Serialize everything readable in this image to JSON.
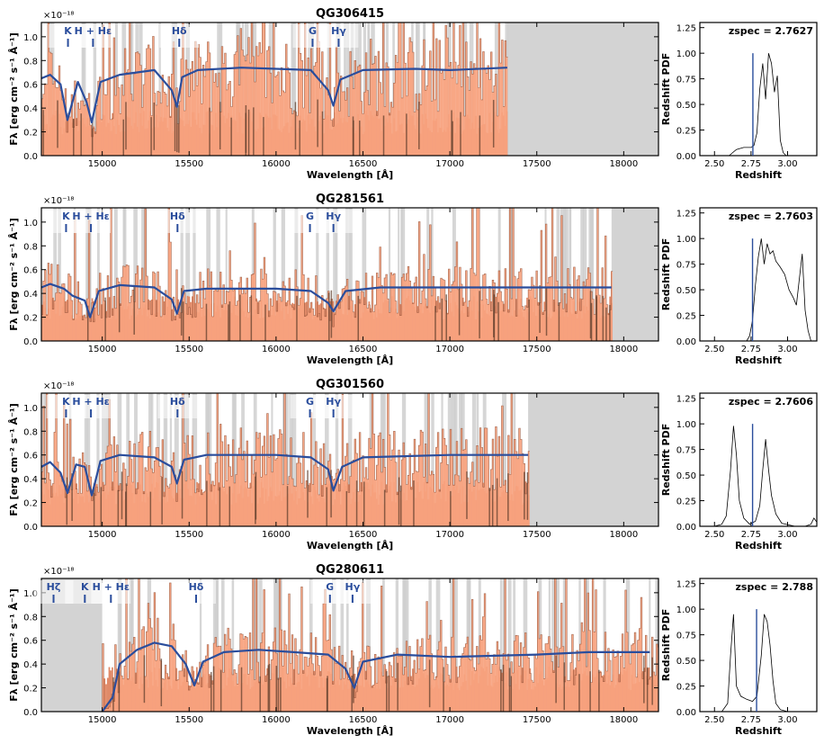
{
  "chart_data": [
    {
      "type": "line",
      "title": "QG306415",
      "xlabel": "Wavelength [Å]",
      "ylabel": "Fλ [erg cm⁻² s⁻¹ Å⁻¹]",
      "scale_label": "×10⁻¹⁸",
      "xlim": [
        14650,
        18200
      ],
      "ylim": [
        0,
        1.12
      ],
      "xticks": [
        "15000",
        "15500",
        "16000",
        "16500",
        "17000",
        "17500",
        "18000"
      ],
      "yticks": [
        "0.0",
        "0.2",
        "0.4",
        "0.6",
        "0.8",
        "1.0"
      ],
      "data_end": 17330,
      "masked_from": 17330,
      "continuum": 0.72,
      "model_series": {
        "x": [
          14650,
          14700,
          14760,
          14800,
          14860,
          14910,
          14940,
          14990,
          15100,
          15300,
          15400,
          15430,
          15460,
          15550,
          15800,
          16000,
          16200,
          16300,
          16330,
          16370,
          16500,
          16800,
          17000,
          17330
        ],
        "y": [
          0.65,
          0.68,
          0.6,
          0.3,
          0.62,
          0.45,
          0.28,
          0.62,
          0.68,
          0.72,
          0.55,
          0.41,
          0.66,
          0.72,
          0.74,
          0.73,
          0.72,
          0.55,
          0.42,
          0.64,
          0.72,
          0.73,
          0.72,
          0.74
        ]
      },
      "lines": [
        {
          "label": "K",
          "x": 14803
        },
        {
          "label": "H + Hε",
          "x": 14947
        },
        {
          "label": "Hδ",
          "x": 15443
        },
        {
          "label": "G",
          "x": 16210
        },
        {
          "label": "Hγ",
          "x": 16360
        }
      ],
      "pdf": {
        "xlabel": "Redshift",
        "ylabel": "Redshift PDF",
        "zspec_label": "zspec = 2.7627",
        "zspec": 2.7627,
        "xlim": [
          2.4,
          3.2
        ],
        "ylim": [
          0,
          1.3
        ],
        "xticks": [
          "2.50",
          "2.75",
          "3.00"
        ],
        "yticks": [
          "0.00",
          "0.25",
          "0.50",
          "0.75",
          "1.00",
          "1.25"
        ],
        "x": [
          2.6,
          2.65,
          2.7,
          2.75,
          2.77,
          2.79,
          2.81,
          2.83,
          2.85,
          2.87,
          2.89,
          2.91,
          2.93,
          2.95,
          2.97,
          2.99
        ],
        "y": [
          0.0,
          0.06,
          0.08,
          0.08,
          0.1,
          0.22,
          0.65,
          0.9,
          0.55,
          1.0,
          0.9,
          0.62,
          0.78,
          0.15,
          0.03,
          0.0
        ]
      }
    },
    {
      "type": "line",
      "title": "QG281561",
      "xlabel": "Wavelength [Å]",
      "ylabel": "Fλ [erg cm⁻² s⁻¹ Å⁻¹]",
      "scale_label": "×10⁻¹⁸",
      "xlim": [
        14650,
        18200
      ],
      "ylim": [
        0,
        1.12
      ],
      "xticks": [
        "15000",
        "15500",
        "16000",
        "16500",
        "17000",
        "17500",
        "18000"
      ],
      "yticks": [
        "0.0",
        "0.2",
        "0.4",
        "0.6",
        "0.8",
        "1.0"
      ],
      "data_end": 17930,
      "masked_from": 17930,
      "continuum": 0.45,
      "model_series": {
        "x": [
          14650,
          14700,
          14780,
          14830,
          14900,
          14930,
          14980,
          15100,
          15300,
          15400,
          15430,
          15470,
          15600,
          16000,
          16200,
          16300,
          16330,
          16400,
          16600,
          17000,
          17500,
          17930
        ],
        "y": [
          0.45,
          0.48,
          0.44,
          0.38,
          0.34,
          0.2,
          0.42,
          0.47,
          0.45,
          0.35,
          0.23,
          0.42,
          0.44,
          0.44,
          0.42,
          0.32,
          0.25,
          0.42,
          0.45,
          0.45,
          0.45,
          0.45
        ]
      },
      "lines": [
        {
          "label": "K",
          "x": 14792
        },
        {
          "label": "H + Hε",
          "x": 14935
        },
        {
          "label": "Hδ",
          "x": 15433
        },
        {
          "label": "G",
          "x": 16195
        },
        {
          "label": "Hγ",
          "x": 16330
        }
      ],
      "pdf": {
        "xlabel": "Redshift",
        "ylabel": "Redshift PDF",
        "zspec_label": "zspec = 2.7603",
        "zspec": 2.7603,
        "xlim": [
          2.4,
          3.2
        ],
        "ylim": [
          0,
          1.3
        ],
        "xticks": [
          "2.50",
          "2.75",
          "3.00"
        ],
        "yticks": [
          "0.00",
          "0.25",
          "0.50",
          "0.75",
          "1.00",
          "1.25"
        ],
        "x": [
          2.72,
          2.74,
          2.76,
          2.78,
          2.8,
          2.82,
          2.84,
          2.86,
          2.88,
          2.9,
          2.92,
          2.95,
          2.98,
          3.01,
          3.04,
          3.06,
          3.08,
          3.1,
          3.12,
          3.14,
          3.16
        ],
        "y": [
          0.0,
          0.05,
          0.2,
          0.55,
          0.82,
          1.0,
          0.75,
          0.95,
          0.85,
          0.88,
          0.78,
          0.72,
          0.65,
          0.5,
          0.42,
          0.35,
          0.6,
          0.85,
          0.3,
          0.1,
          0.0
        ]
      }
    },
    {
      "type": "line",
      "title": "QG301560",
      "xlabel": "Wavelength [Å]",
      "ylabel": "Fλ [erg cm⁻² s⁻¹ Å⁻¹]",
      "scale_label": "×10⁻¹⁸",
      "xlim": [
        14650,
        18200
      ],
      "ylim": [
        0,
        1.12
      ],
      "xticks": [
        "15000",
        "15500",
        "16000",
        "16500",
        "17000",
        "17500",
        "18000"
      ],
      "yticks": [
        "0.0",
        "0.2",
        "0.4",
        "0.6",
        "0.8",
        "1.0"
      ],
      "data_end": 17450,
      "masked_from": 17450,
      "continuum": 0.6,
      "model_series": {
        "x": [
          14650,
          14700,
          14760,
          14800,
          14850,
          14900,
          14940,
          14990,
          15100,
          15300,
          15400,
          15430,
          15470,
          15600,
          16000,
          16200,
          16300,
          16330,
          16380,
          16500,
          17000,
          17450
        ],
        "y": [
          0.5,
          0.54,
          0.45,
          0.28,
          0.52,
          0.5,
          0.26,
          0.55,
          0.6,
          0.58,
          0.5,
          0.36,
          0.56,
          0.6,
          0.6,
          0.58,
          0.48,
          0.3,
          0.5,
          0.58,
          0.6,
          0.6
        ]
      },
      "lines": [
        {
          "label": "K",
          "x": 14792
        },
        {
          "label": "H + Hε",
          "x": 14935
        },
        {
          "label": "Hδ",
          "x": 15433
        },
        {
          "label": "G",
          "x": 16195
        },
        {
          "label": "Hγ",
          "x": 16330
        }
      ],
      "pdf": {
        "xlabel": "Redshift",
        "ylabel": "Redshift PDF",
        "zspec_label": "zspec = 2.7606",
        "zspec": 2.7606,
        "xlim": [
          2.4,
          3.2
        ],
        "ylim": [
          0,
          1.3
        ],
        "xticks": [
          "2.50",
          "2.75",
          "3.00"
        ],
        "yticks": [
          "0.00",
          "0.25",
          "0.50",
          "0.75",
          "1.00",
          "1.25"
        ],
        "x": [
          2.5,
          2.55,
          2.58,
          2.61,
          2.63,
          2.65,
          2.67,
          2.7,
          2.74,
          2.78,
          2.81,
          2.83,
          2.85,
          2.87,
          2.89,
          2.92,
          2.96,
          3.05,
          3.12,
          3.16,
          3.18,
          3.2
        ],
        "y": [
          0.0,
          0.02,
          0.1,
          0.55,
          0.98,
          0.7,
          0.25,
          0.08,
          0.02,
          0.05,
          0.2,
          0.55,
          0.85,
          0.55,
          0.3,
          0.12,
          0.03,
          0.0,
          0.0,
          0.02,
          0.08,
          0.04
        ]
      }
    },
    {
      "type": "line",
      "title": "QG280611",
      "xlabel": "Wavelength [Å]",
      "ylabel": "Fλ [erg cm⁻² s⁻¹ Å⁻¹]",
      "scale_label": "×10⁻¹⁸",
      "xlim": [
        14650,
        18200
      ],
      "ylim": [
        0,
        1.12
      ],
      "xticks": [
        "15000",
        "15500",
        "16000",
        "16500",
        "17000",
        "17500",
        "18000"
      ],
      "yticks": [
        "0.0",
        "0.2",
        "0.4",
        "0.6",
        "0.8",
        "1.0"
      ],
      "data_start": 15000,
      "masked_to": 15000,
      "data_end": 18200,
      "continuum": 0.5,
      "model_series": {
        "x": [
          15000,
          15060,
          15100,
          15200,
          15300,
          15400,
          15480,
          15530,
          15580,
          15700,
          15900,
          16100,
          16300,
          16400,
          16450,
          16500,
          16700,
          17000,
          17500,
          17800,
          18000,
          18150
        ],
        "y": [
          0.0,
          0.12,
          0.4,
          0.52,
          0.58,
          0.55,
          0.4,
          0.22,
          0.42,
          0.5,
          0.52,
          0.5,
          0.48,
          0.36,
          0.2,
          0.42,
          0.48,
          0.46,
          0.48,
          0.5,
          0.5,
          0.5
        ]
      },
      "lines": [
        {
          "label": "Hζ",
          "x": 14720
        },
        {
          "label": "K",
          "x": 14900
        },
        {
          "label": "H + Hε",
          "x": 15050
        },
        {
          "label": "Hδ",
          "x": 15540
        },
        {
          "label": "G",
          "x": 16310
        },
        {
          "label": "Hγ",
          "x": 16440
        }
      ],
      "pdf": {
        "xlabel": "Redshift",
        "ylabel": "Redshift PDF",
        "zspec_label": "zspec = 2.788",
        "zspec": 2.788,
        "xlim": [
          2.4,
          3.2
        ],
        "ylim": [
          0,
          1.3
        ],
        "xticks": [
          "2.50",
          "2.75",
          "3.00"
        ],
        "yticks": [
          "0.00",
          "0.25",
          "0.50",
          "0.75",
          "1.00",
          "1.25"
        ],
        "x": [
          2.55,
          2.59,
          2.61,
          2.63,
          2.65,
          2.68,
          2.72,
          2.76,
          2.79,
          2.82,
          2.84,
          2.86,
          2.88,
          2.9,
          2.92,
          2.95,
          3.0
        ],
        "y": [
          0.0,
          0.08,
          0.55,
          0.95,
          0.25,
          0.15,
          0.12,
          0.1,
          0.15,
          0.55,
          0.95,
          0.88,
          0.65,
          0.3,
          0.08,
          0.02,
          0.0
        ]
      }
    }
  ]
}
